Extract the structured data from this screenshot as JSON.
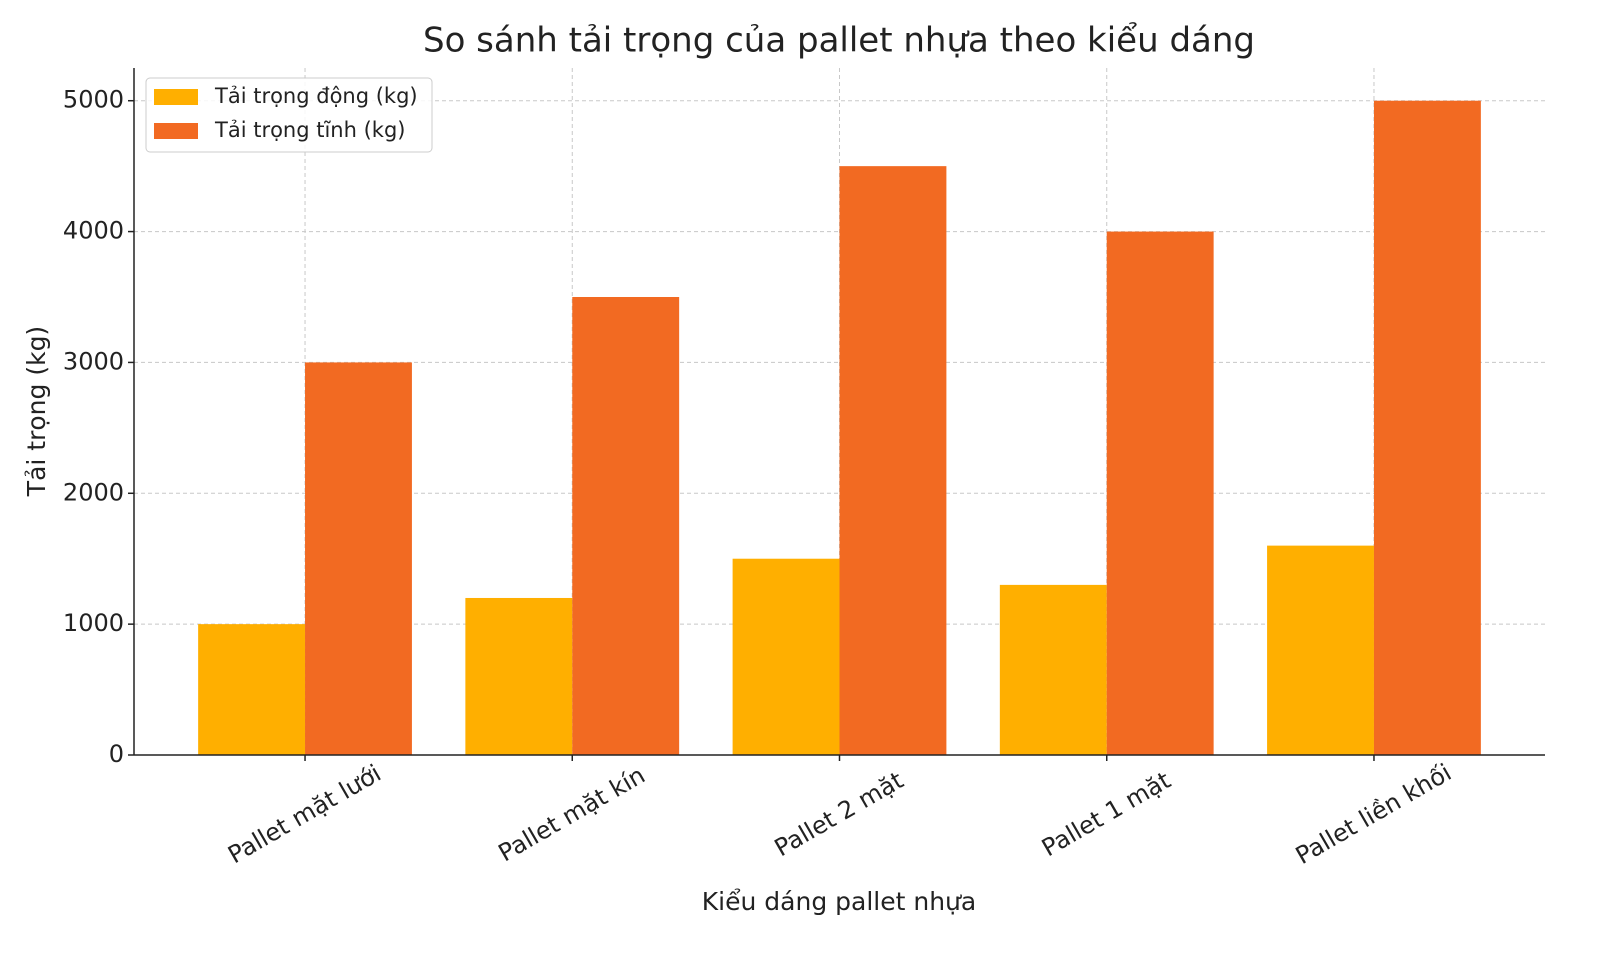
{
  "chart_data": {
    "type": "bar",
    "title": "So sánh tải trọng của pallet nhựa theo kiểu dáng",
    "x_label": "Kiểu dáng pallet nhựa",
    "y_label": "Tải trọng (kg)",
    "categories": [
      "Pallet mặt lưới",
      "Pallet mặt kín",
      "Pallet 2 mặt",
      "Pallet 1 mặt",
      "Pallet liền khối"
    ],
    "series": [
      {
        "name": "Tải trọng động (kg)",
        "color": "#FFAF00",
        "values": [
          1000,
          1200,
          1500,
          1300,
          1600
        ]
      },
      {
        "name": "Tải trọng tĩnh (kg)",
        "color": "#F26A22",
        "values": [
          3000,
          3500,
          4500,
          4000,
          5000
        ]
      }
    ],
    "ylim": [
      0,
      5250
    ],
    "yticks": [
      0,
      1000,
      2000,
      3000,
      4000,
      5000
    ],
    "grid": true,
    "legend": "upper-left"
  }
}
